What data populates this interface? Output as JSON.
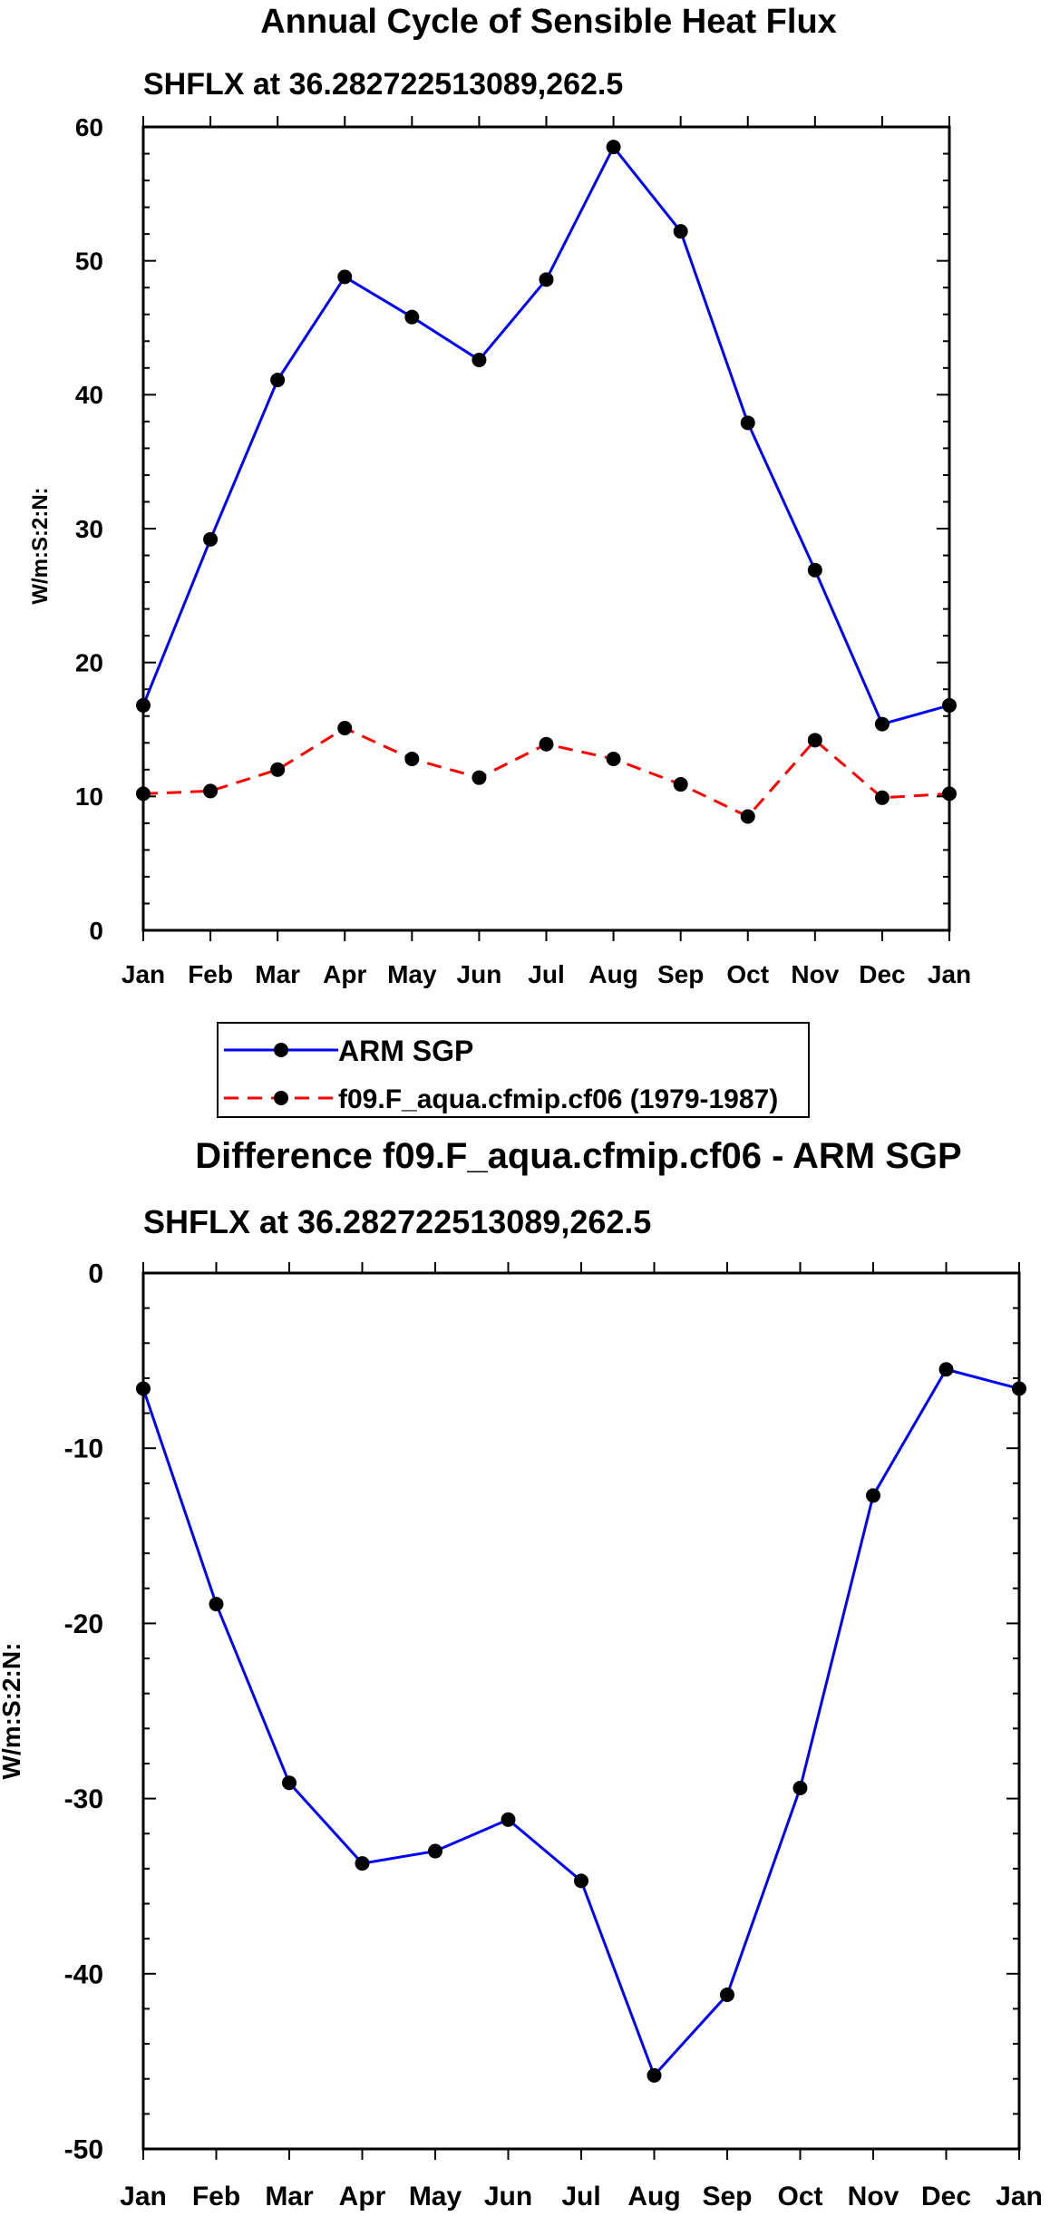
{
  "colors": {
    "model": "#ff0000",
    "obs": "#0000ff",
    "marker": "#000000",
    "axis": "#000000"
  },
  "legend": {
    "entries": [
      {
        "label": "ARM SGP",
        "color": "#0000ff",
        "dashed": false
      },
      {
        "label": "f09.F_aqua.cfmip.cf06 (1979-1987)",
        "color": "#ff0000",
        "dashed": true
      }
    ]
  },
  "chart_data": [
    {
      "type": "line",
      "title": "Annual Cycle of Sensible Heat Flux",
      "subtitle": "SHFLX at 36.282722513089,262.5",
      "xlabel": "",
      "ylabel": "W/m:S:2:N:",
      "categories": [
        "Jan",
        "Feb",
        "Mar",
        "Apr",
        "May",
        "Jun",
        "Jul",
        "Aug",
        "Sep",
        "Oct",
        "Nov",
        "Dec",
        "Jan"
      ],
      "ylim": [
        0,
        60
      ],
      "yticks": [
        "0",
        "10",
        "20",
        "30",
        "40",
        "50",
        "60"
      ],
      "grid": false,
      "series": [
        {
          "name": "ARM SGP",
          "color": "#0000ff",
          "dashed": false,
          "values": [
            16.8,
            29.2,
            41.1,
            48.8,
            45.8,
            42.6,
            48.6,
            58.5,
            52.2,
            37.9,
            26.9,
            15.4,
            16.8
          ]
        },
        {
          "name": "f09.F_aqua.cfmip.cf06 (1979-1987)",
          "color": "#ff0000",
          "dashed": true,
          "values": [
            10.2,
            10.4,
            12.0,
            15.1,
            12.8,
            11.4,
            13.9,
            12.8,
            10.9,
            8.5,
            14.2,
            9.9,
            10.2
          ]
        }
      ]
    },
    {
      "type": "line",
      "title": "Difference f09.F_aqua.cfmip.cf06 - ARM SGP",
      "subtitle": "SHFLX at 36.282722513089,262.5",
      "xlabel": "",
      "ylabel": "W/m:S:2:N:",
      "categories": [
        "Jan",
        "Feb",
        "Mar",
        "Apr",
        "May",
        "Jun",
        "Jul",
        "Aug",
        "Sep",
        "Oct",
        "Nov",
        "Dec",
        "Jan"
      ],
      "ylim": [
        -50,
        0
      ],
      "yticks": [
        "0",
        "-10",
        "-20",
        "-30",
        "-40",
        "-50"
      ],
      "grid": false,
      "series": [
        {
          "name": "Difference",
          "color": "#0000ff",
          "dashed": false,
          "values": [
            -6.6,
            -18.9,
            -29.1,
            -33.7,
            -33.0,
            -31.2,
            -34.7,
            -45.8,
            -41.2,
            -29.4,
            -12.7,
            -5.5,
            -6.6
          ]
        }
      ]
    }
  ]
}
